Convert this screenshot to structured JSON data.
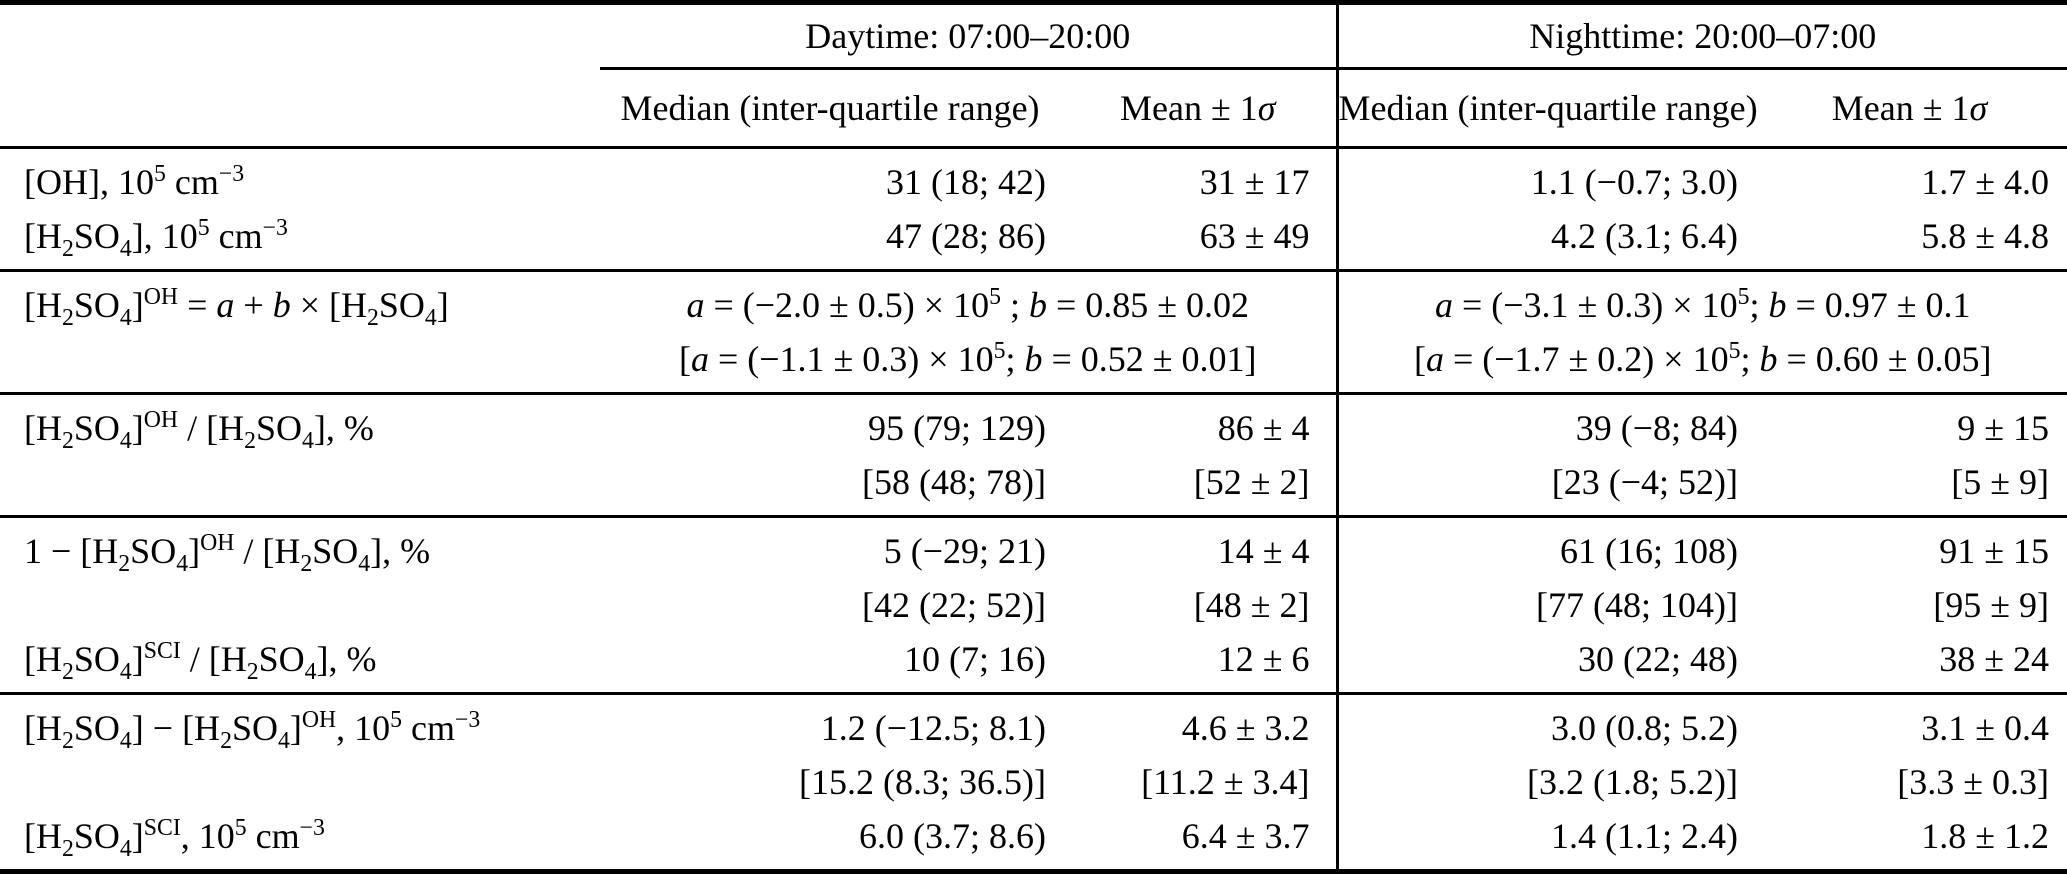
{
  "table": {
    "header": {
      "day_title": "Daytime: 07:00–20:00",
      "night_title": "Nighttime: 20:00–07:00",
      "median_label": "Median (inter-quartile range)",
      "mean_label": "Mean ± 1<i>σ</i>"
    },
    "sections": [
      {
        "name": "concentrations",
        "rows": [
          {
            "label": "[OH], 10<sup>5</sup> cm<sup>−3</sup>",
            "day_median": "31 (18; 42)",
            "day_mean": "31 ± 17",
            "night_median": "1.1 (−0.7; 3.0)",
            "night_mean": "1.7 ± 4.0"
          },
          {
            "label": "[H<sub>2</sub>SO<sub>4</sub>], 10<sup>5</sup> cm<sup>−3</sup>",
            "day_median": "47 (28; 86)",
            "day_mean": "63 ± 49",
            "night_median": "4.2 (3.1; 6.4)",
            "night_mean": "5.8 ± 4.8"
          }
        ]
      },
      {
        "name": "regression",
        "label": "[H<sub>2</sub>SO<sub>4</sub>]<sup>OH</sup> = <i>a</i> + <i>b</i> × [H<sub>2</sub>SO<sub>4</sub>]",
        "day_lines": [
          "<i>a</i> = (−2.0 ± 0.5) × 10<sup>5</sup> ; <i>b</i> = 0.85 ± 0.02",
          "[<i>a</i> = (−1.1 ± 0.3) × 10<sup>5</sup>; <i>b</i> = 0.52 ± 0.01]"
        ],
        "night_lines": [
          "<i>a</i> = (−3.1 ± 0.3) × 10<sup>5</sup>; <i>b</i> = 0.97 ± 0.1",
          "[<i>a</i> = (−1.7 ± 0.2) × 10<sup>5</sup>; <i>b</i> = 0.60 ± 0.05]"
        ]
      },
      {
        "name": "oh-fraction",
        "rows": [
          {
            "label": "[H<sub>2</sub>SO<sub>4</sub>]<sup>OH</sup> / [H<sub>2</sub>SO<sub>4</sub>], %",
            "day_median": "95 (79; 129)",
            "day_mean": "86 ± 4",
            "night_median": "39 (−8; 84)",
            "night_mean": "9 ± 15"
          },
          {
            "label": "",
            "day_median": "[58 (48; 78)]",
            "day_mean": "[52 ± 2]",
            "night_median": "[23 (−4; 52)]",
            "night_mean": "[5 ± 9]"
          }
        ]
      },
      {
        "name": "non-oh-fraction",
        "rows": [
          {
            "label": "1 − [H<sub>2</sub>SO<sub>4</sub>]<sup>OH</sup> / [H<sub>2</sub>SO<sub>4</sub>], %",
            "day_median": "5 (−29; 21)",
            "day_mean": "14 ± 4",
            "night_median": "61 (16; 108)",
            "night_mean": "91 ± 15"
          },
          {
            "label": "",
            "day_median": "[42 (22; 52)]",
            "day_mean": "[48 ± 2]",
            "night_median": "[77 (48; 104)]",
            "night_mean": "[95 ± 9]"
          },
          {
            "label": "[H<sub>2</sub>SO<sub>4</sub>]<sup>SCI</sup> / [H<sub>2</sub>SO<sub>4</sub>], %",
            "day_median": "10 (7; 16)",
            "day_mean": "12 ± 6",
            "night_median": "30 (22; 48)",
            "night_mean": "38 ± 24"
          }
        ]
      },
      {
        "name": "differences",
        "rows": [
          {
            "label": "[H<sub>2</sub>SO<sub>4</sub>] − [H<sub>2</sub>SO<sub>4</sub>]<sup>OH</sup>, 10<sup>5</sup> cm<sup>−3</sup>",
            "day_median": "1.2 (−12.5; 8.1)",
            "day_mean": "4.6 ± 3.2",
            "night_median": "3.0 (0.8; 5.2)",
            "night_mean": "3.1 ± 0.4"
          },
          {
            "label": "",
            "day_median": "[15.2 (8.3; 36.5)]",
            "day_mean": "[11.2 ± 3.4]",
            "night_median": "[3.2 (1.8; 5.2)]",
            "night_mean": "[3.3 ± 0.3]"
          },
          {
            "label": "[H<sub>2</sub>SO<sub>4</sub>]<sup>SCI</sup>, 10<sup>5</sup> cm<sup>−3</sup>",
            "day_median": "6.0 (3.7; 8.6)",
            "day_mean": "6.4 ± 3.7",
            "night_median": "1.4 (1.1; 2.4)",
            "night_mean": "1.8 ± 1.2"
          }
        ]
      }
    ]
  }
}
